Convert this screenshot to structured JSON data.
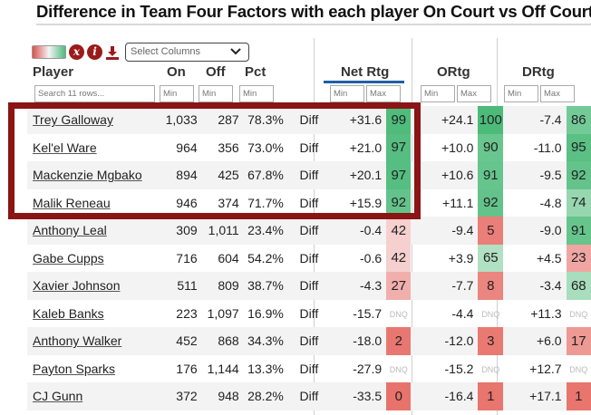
{
  "title": "Difference in Team Four Factors with each player On Court vs Off Court",
  "toolbar": {
    "select_placeholder": "Select Columns",
    "icons": [
      "color-scale-toggle-icon",
      "close-icon",
      "info-icon",
      "download-icon",
      "chevron-down-icon"
    ]
  },
  "headers": {
    "player": "Player",
    "on": "On",
    "off": "Off",
    "pct": "Pct",
    "net_rtg": "Net Rtg",
    "ortg": "ORtg",
    "drtg": "DRtg"
  },
  "filters": {
    "search_placeholder": "Search 11 rows...",
    "min": "Min",
    "max": "Max"
  },
  "colors": {
    "highlight_border": "#8b1414",
    "accent_underline": "#1f5fa8",
    "pill_high": "#4cbb7a",
    "pill_low": "#e8736c"
  },
  "rows": [
    {
      "player": "Trey Galloway",
      "on": "1,033",
      "off": "287",
      "pct": "78.3%",
      "diff": "Diff",
      "net": "+31.6",
      "net_p": "99",
      "o": "+24.1",
      "o_p": "100",
      "d": "-7.4",
      "d_p": "86"
    },
    {
      "player": "Kel'el Ware",
      "on": "964",
      "off": "356",
      "pct": "73.0%",
      "diff": "Diff",
      "net": "+21.0",
      "net_p": "97",
      "o": "+10.0",
      "o_p": "90",
      "d": "-11.0",
      "d_p": "95"
    },
    {
      "player": "Mackenzie Mgbako",
      "on": "894",
      "off": "425",
      "pct": "67.8%",
      "diff": "Diff",
      "net": "+20.1",
      "net_p": "97",
      "o": "+10.6",
      "o_p": "91",
      "d": "-9.5",
      "d_p": "92"
    },
    {
      "player": "Malik Reneau",
      "on": "946",
      "off": "374",
      "pct": "71.7%",
      "diff": "Diff",
      "net": "+15.9",
      "net_p": "92",
      "o": "+11.1",
      "o_p": "92",
      "d": "-4.8",
      "d_p": "74"
    },
    {
      "player": "Anthony Leal",
      "on": "309",
      "off": "1,011",
      "pct": "23.4%",
      "diff": "Diff",
      "net": "-0.4",
      "net_p": "42",
      "o": "-9.4",
      "o_p": "5",
      "d": "-9.0",
      "d_p": "91"
    },
    {
      "player": "Gabe Cupps",
      "on": "716",
      "off": "604",
      "pct": "54.2%",
      "diff": "Diff",
      "net": "-0.6",
      "net_p": "42",
      "o": "+3.9",
      "o_p": "65",
      "d": "+4.5",
      "d_p": "23"
    },
    {
      "player": "Xavier Johnson",
      "on": "511",
      "off": "809",
      "pct": "38.7%",
      "diff": "Diff",
      "net": "-4.3",
      "net_p": "27",
      "o": "-7.7",
      "o_p": "8",
      "d": "-3.4",
      "d_p": "68"
    },
    {
      "player": "Kaleb Banks",
      "on": "223",
      "off": "1,097",
      "pct": "16.9%",
      "diff": "Diff",
      "net": "-15.7",
      "net_p": "DNQ",
      "o": "-4.4",
      "o_p": "DNQ",
      "d": "+11.3",
      "d_p": "DNQ"
    },
    {
      "player": "Anthony Walker",
      "on": "452",
      "off": "868",
      "pct": "34.3%",
      "diff": "Diff",
      "net": "-18.0",
      "net_p": "2",
      "o": "-12.0",
      "o_p": "3",
      "d": "+6.0",
      "d_p": "17"
    },
    {
      "player": "Payton Sparks",
      "on": "176",
      "off": "1,144",
      "pct": "13.3%",
      "diff": "Diff",
      "net": "-27.9",
      "net_p": "DNQ",
      "o": "-15.2",
      "o_p": "DNQ",
      "d": "+12.7",
      "d_p": "DNQ"
    },
    {
      "player": "CJ Gunn",
      "on": "372",
      "off": "948",
      "pct": "28.2%",
      "diff": "Diff",
      "net": "-33.5",
      "net_p": "0",
      "o": "-16.4",
      "o_p": "1",
      "d": "+17.1",
      "d_p": "1"
    }
  ]
}
